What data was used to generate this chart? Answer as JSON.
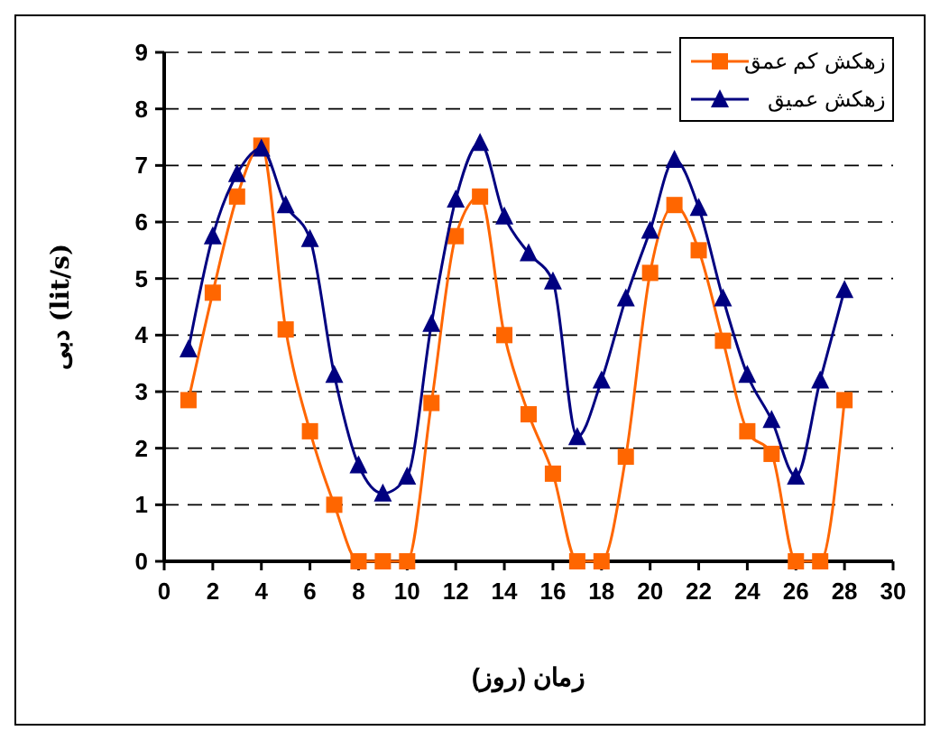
{
  "chart_data": {
    "type": "line",
    "xlabel": "زمان (روز)",
    "ylabel": "دبی (lit/s)",
    "x": [
      1,
      2,
      3,
      4,
      5,
      6,
      7,
      8,
      9,
      10,
      11,
      12,
      13,
      14,
      15,
      16,
      17,
      18,
      19,
      20,
      21,
      22,
      23,
      24,
      25,
      26,
      27,
      28
    ],
    "series": [
      {
        "name": "زهکش کم عمق",
        "color": "#ff6600",
        "marker": "square",
        "values": [
          2.85,
          4.75,
          6.45,
          7.35,
          4.1,
          2.3,
          1.0,
          0,
          0,
          0,
          2.8,
          5.75,
          6.45,
          4.0,
          2.6,
          1.55,
          0,
          0,
          1.85,
          5.1,
          6.3,
          5.5,
          3.9,
          2.3,
          1.9,
          0,
          0,
          2.85
        ]
      },
      {
        "name": "زهکش عمیق",
        "color": "#000080",
        "marker": "triangle",
        "values": [
          3.75,
          5.75,
          6.85,
          7.3,
          6.3,
          5.7,
          3.3,
          1.7,
          1.2,
          1.5,
          4.2,
          6.4,
          7.4,
          6.1,
          5.45,
          4.95,
          2.2,
          3.2,
          4.65,
          5.85,
          7.1,
          6.25,
          4.65,
          3.3,
          2.5,
          1.5,
          3.2,
          4.8
        ]
      }
    ],
    "xlim": [
      0,
      30
    ],
    "xticks": [
      0,
      2,
      4,
      6,
      8,
      10,
      12,
      14,
      16,
      18,
      20,
      22,
      24,
      26,
      28,
      30
    ],
    "ylim": [
      0,
      9
    ],
    "yticks": [
      0,
      1,
      2,
      3,
      4,
      5,
      6,
      7,
      8,
      9
    ],
    "grid": "y",
    "legend": "top right",
    "line_style": "solid"
  }
}
